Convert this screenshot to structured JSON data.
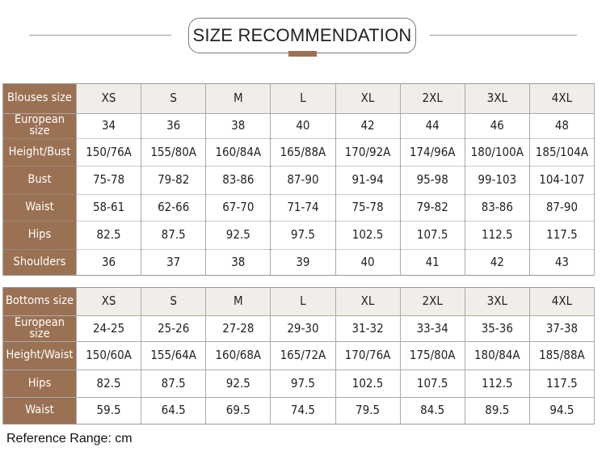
{
  "title": "SIZE RECOMMENDATION",
  "colors": {
    "label_bg": "#9b7153",
    "header_bg": "#f1eeea"
  },
  "blouses": {
    "header": [
      "Blouses size",
      "XS",
      "S",
      "M",
      "L",
      "XL",
      "2XL",
      "3XL",
      "4XL"
    ],
    "rows": [
      [
        "European size",
        "34",
        "36",
        "38",
        "40",
        "42",
        "44",
        "46",
        "48"
      ],
      [
        "Height/Bust",
        "150/76A",
        "155/80A",
        "160/84A",
        "165/88A",
        "170/92A",
        "174/96A",
        "180/100A",
        "185/104A"
      ],
      [
        "Bust",
        "75-78",
        "79-82",
        "83-86",
        "87-90",
        "91-94",
        "95-98",
        "99-103",
        "104-107"
      ],
      [
        "Waist",
        "58-61",
        "62-66",
        "67-70",
        "71-74",
        "75-78",
        "79-82",
        "83-86",
        "87-90"
      ],
      [
        "Hips",
        "82.5",
        "87.5",
        "92.5",
        "97.5",
        "102.5",
        "107.5",
        "112.5",
        "117.5"
      ],
      [
        "Shoulders",
        "36",
        "37",
        "38",
        "39",
        "40",
        "41",
        "42",
        "43"
      ]
    ]
  },
  "bottoms": {
    "header": [
      "Bottoms size",
      "XS",
      "S",
      "M",
      "L",
      "XL",
      "2XL",
      "3XL",
      "4XL"
    ],
    "rows": [
      [
        "European size",
        "24-25",
        "25-26",
        "27-28",
        "29-30",
        "31-32",
        "33-34",
        "35-36",
        "37-38"
      ],
      [
        "Height/Waist",
        "150/60A",
        "155/64A",
        "160/68A",
        "165/72A",
        "170/76A",
        "175/80A",
        "180/84A",
        "185/88A"
      ],
      [
        "Hips",
        "82.5",
        "87.5",
        "92.5",
        "97.5",
        "102.5",
        "107.5",
        "112.5",
        "117.5"
      ],
      [
        "Waist",
        "59.5",
        "64.5",
        "69.5",
        "74.5",
        "79.5",
        "84.5",
        "89.5",
        "94.5"
      ]
    ]
  },
  "footer": "Reference Range: cm"
}
